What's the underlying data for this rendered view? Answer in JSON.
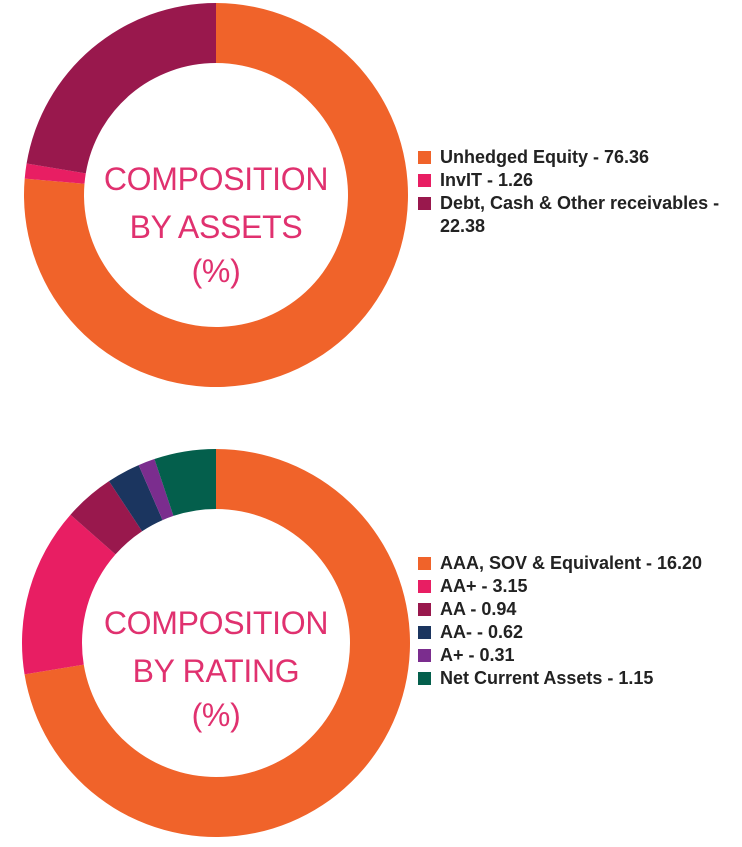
{
  "chart_data": [
    {
      "type": "pie",
      "title": "COMPOSITION BY ASSETS (%)",
      "title_lines": [
        "COMPOSITION",
        "BY ASSETS",
        "(%)"
      ],
      "categories": [
        "Unhedged Equity",
        "InvIT",
        "Debt, Cash & Other receivables"
      ],
      "values": [
        76.36,
        1.26,
        22.38
      ],
      "colors": [
        "#f0632a",
        "#e81e63",
        "#99184d"
      ],
      "legend_labels": [
        "Unhedged Equity - 76.36",
        "InvIT - 1.26",
        "Debt, Cash & Other receivables - 22.38"
      ],
      "legend": "right"
    },
    {
      "type": "pie",
      "title": "COMPOSITION BY RATING (%)",
      "title_lines": [
        "COMPOSITION",
        "BY RATING",
        "(%)"
      ],
      "categories": [
        "AAA, SOV & Equivalent",
        "AA+",
        "AA",
        "AA-",
        "A+",
        "Net Current Assets"
      ],
      "values": [
        16.2,
        3.15,
        0.94,
        0.62,
        0.31,
        1.15
      ],
      "colors": [
        "#f0632a",
        "#e81e63",
        "#99184d",
        "#1b355f",
        "#7b2d8e",
        "#045f4c"
      ],
      "legend_labels": [
        "AAA, SOV & Equivalent - 16.20",
        "AA+ - 3.15",
        "AA - 0.94",
        "AA- - 0.62",
        "A+ - 0.31",
        "Net Current Assets - 1.15"
      ],
      "legend": "right"
    }
  ]
}
